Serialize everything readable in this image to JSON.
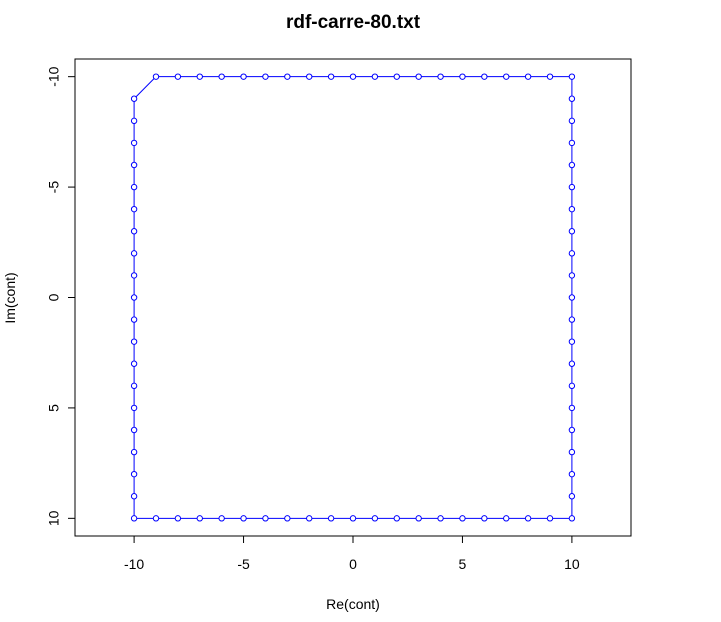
{
  "chart_data": {
    "type": "line",
    "title": "rdf-carre-80.txt",
    "xlabel": "Re(cont)",
    "ylabel": "Im(cont)",
    "xlim": [
      -12.7,
      12.7
    ],
    "ylim": [
      -10.8,
      10.8
    ],
    "y_reversed": true,
    "x_ticks": [
      -10,
      -5,
      0,
      5,
      10
    ],
    "y_ticks": [
      -10,
      -5,
      0,
      5,
      10
    ],
    "x_tick_labels": [
      "-10",
      "-5",
      "0",
      "5",
      "10"
    ],
    "y_tick_labels": [
      "-10",
      "-5",
      "0",
      "5",
      "10"
    ],
    "grid": false,
    "legend": "none",
    "series": [
      {
        "color": "#0000ff",
        "marker": "open-circle",
        "closed": true,
        "points": [
          [
            10,
            -10
          ],
          [
            10,
            -9
          ],
          [
            10,
            -8
          ],
          [
            10,
            -7
          ],
          [
            10,
            -6
          ],
          [
            10,
            -5
          ],
          [
            10,
            -4
          ],
          [
            10,
            -3
          ],
          [
            10,
            -2
          ],
          [
            10,
            -1
          ],
          [
            10,
            0
          ],
          [
            10,
            1
          ],
          [
            10,
            2
          ],
          [
            10,
            3
          ],
          [
            10,
            4
          ],
          [
            10,
            5
          ],
          [
            10,
            6
          ],
          [
            10,
            7
          ],
          [
            10,
            8
          ],
          [
            10,
            9
          ],
          [
            10,
            10
          ],
          [
            9,
            10
          ],
          [
            8,
            10
          ],
          [
            7,
            10
          ],
          [
            6,
            10
          ],
          [
            5,
            10
          ],
          [
            4,
            10
          ],
          [
            3,
            10
          ],
          [
            2,
            10
          ],
          [
            1,
            10
          ],
          [
            0,
            10
          ],
          [
            -1,
            10
          ],
          [
            -2,
            10
          ],
          [
            -3,
            10
          ],
          [
            -4,
            10
          ],
          [
            -5,
            10
          ],
          [
            -6,
            10
          ],
          [
            -7,
            10
          ],
          [
            -8,
            10
          ],
          [
            -9,
            10
          ],
          [
            -10,
            10
          ],
          [
            -10,
            9
          ],
          [
            -10,
            8
          ],
          [
            -10,
            7
          ],
          [
            -10,
            6
          ],
          [
            -10,
            5
          ],
          [
            -10,
            4
          ],
          [
            -10,
            3
          ],
          [
            -10,
            2
          ],
          [
            -10,
            1
          ],
          [
            -10,
            0
          ],
          [
            -10,
            -1
          ],
          [
            -10,
            -2
          ],
          [
            -10,
            -3
          ],
          [
            -10,
            -4
          ],
          [
            -10,
            -5
          ],
          [
            -10,
            -6
          ],
          [
            -10,
            -7
          ],
          [
            -10,
            -8
          ],
          [
            -10,
            -9
          ],
          [
            -9,
            -10
          ],
          [
            -8,
            -10
          ],
          [
            -7,
            -10
          ],
          [
            -6,
            -10
          ],
          [
            -5,
            -10
          ],
          [
            -4,
            -10
          ],
          [
            -3,
            -10
          ],
          [
            -2,
            -10
          ],
          [
            -1,
            -10
          ],
          [
            0,
            -10
          ],
          [
            1,
            -10
          ],
          [
            2,
            -10
          ],
          [
            3,
            -10
          ],
          [
            4,
            -10
          ],
          [
            5,
            -10
          ],
          [
            6,
            -10
          ],
          [
            7,
            -10
          ],
          [
            8,
            -10
          ],
          [
            9,
            -10
          ]
        ]
      }
    ]
  }
}
